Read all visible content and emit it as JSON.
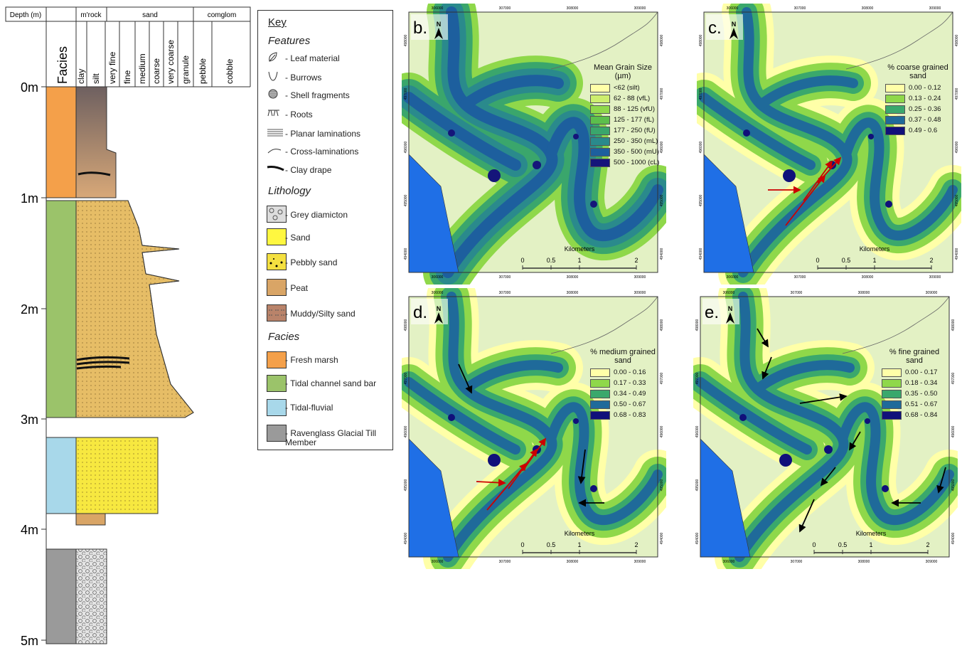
{
  "log": {
    "header": {
      "depth": "Depth (m)",
      "mudrock": "m'rock",
      "sand": "sand",
      "conglom": "comglom"
    },
    "facies_label": "Facies",
    "grain_sizes": [
      "clay",
      "silt",
      "very fine",
      "fine",
      "medium",
      "coarse",
      "very coarse",
      "granule",
      "pebble",
      "cobble"
    ],
    "depths": [
      "0m",
      "1m",
      "2m",
      "3m",
      "4m",
      "5m"
    ]
  },
  "key": {
    "title": "Key",
    "features_title": "Features",
    "features": [
      "- Leaf material",
      "- Burrows",
      "- Shell fragments",
      "- Roots",
      "- Planar laminations",
      "- Cross-laminations",
      "- Clay drape"
    ],
    "lithology_title": "Lithology",
    "lithology": [
      "- Grey diamicton",
      "- Sand",
      "- Pebbly sand",
      "- Peat",
      "- Muddy/Silty sand"
    ],
    "facies_title": "Facies",
    "facies": [
      "- Fresh marsh",
      "- Tidal channel sand bar",
      "- Tidal-fluvial",
      "- Ravenglass Glacial Till Member"
    ]
  },
  "maps": {
    "north": "N",
    "scale_title": "Kilometers",
    "scale_ticks": [
      "0",
      "0.5",
      "1",
      "2"
    ],
    "x_ticks": [
      "306000",
      "307000",
      "308000",
      "309000"
    ],
    "y_ticks": [
      "494000",
      "495000",
      "496000",
      "497000",
      "498000"
    ],
    "panels": [
      {
        "label": "b.",
        "legend_title": "Mean Grain Size (µm)",
        "legend": [
          {
            "label": "<62 (silt)",
            "color": "#ffffa8"
          },
          {
            "label": "62 - 88 (vfL)",
            "color": "#cdee6e"
          },
          {
            "label": "88 - 125 (vfU)",
            "color": "#8fd84a"
          },
          {
            "label": "125 - 177 (fL)",
            "color": "#5cbf4c"
          },
          {
            "label": "177 - 250 (fU)",
            "color": "#3aa66c"
          },
          {
            "label": "250 - 350 (mL)",
            "color": "#2a8a8c"
          },
          {
            "label": "350 - 500 (mU)",
            "color": "#1d5f9e"
          },
          {
            "label": "500 - 1000 (cL)",
            "color": "#15157a"
          }
        ]
      },
      {
        "label": "c.",
        "legend_title": "% coarse grained sand",
        "legend": [
          {
            "label": "0.00 - 0.12",
            "color": "#ffffa8"
          },
          {
            "label": "0.13 - 0.24",
            "color": "#8fd84a"
          },
          {
            "label": "0.25 - 0.36",
            "color": "#3aa86c"
          },
          {
            "label": "0.37 - 0.48",
            "color": "#1f6a9a"
          },
          {
            "label": "0.49 - 0.6",
            "color": "#10107a"
          }
        ]
      },
      {
        "label": "d.",
        "legend_title": "% medium grained sand",
        "legend": [
          {
            "label": "0.00 - 0.16",
            "color": "#ffffa8"
          },
          {
            "label": "0.17 - 0.33",
            "color": "#8fd84a"
          },
          {
            "label": "0.34 - 0.49",
            "color": "#3aa86c"
          },
          {
            "label": "0.50 - 0.67",
            "color": "#1f6a9a"
          },
          {
            "label": "0.68 - 0.83",
            "color": "#10107a"
          }
        ]
      },
      {
        "label": "e.",
        "legend_title": "% fine grained sand",
        "legend": [
          {
            "label": "0.00 - 0.17",
            "color": "#ffffa8"
          },
          {
            "label": "0.18 - 0.34",
            "color": "#8fd84a"
          },
          {
            "label": "0.35 - 0.50",
            "color": "#3aa86c"
          },
          {
            "label": "0.51 - 0.67",
            "color": "#1f6a9a"
          },
          {
            "label": "0.68 - 0.84",
            "color": "#10107a"
          }
        ]
      }
    ]
  }
}
